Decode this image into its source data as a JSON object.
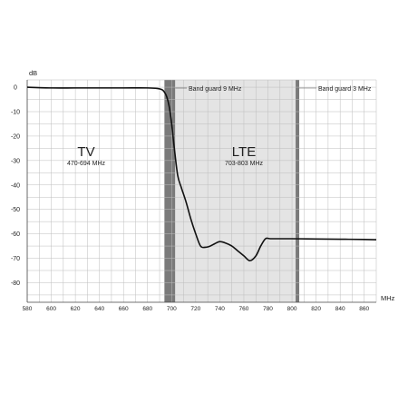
{
  "chart_data": {
    "type": "line",
    "title": "",
    "xlabel": "MHz",
    "ylabel": "dB",
    "xlim": [
      580,
      870
    ],
    "ylim": [
      -88,
      3
    ],
    "grid": true,
    "x_ticks": [
      580,
      600,
      620,
      640,
      660,
      680,
      700,
      720,
      740,
      760,
      780,
      800,
      820,
      840,
      860
    ],
    "y_ticks": [
      0,
      -10,
      -20,
      -30,
      -40,
      -50,
      -60,
      -70,
      -80
    ],
    "x_tick_labels": [
      "580",
      "600",
      "620",
      "640",
      "660",
      "680",
      "700",
      "720",
      "740",
      "760",
      "780",
      "800",
      "820",
      "840",
      "860"
    ],
    "y_tick_labels": [
      "0",
      "-10",
      "-20",
      "-30",
      "-40",
      "-50",
      "-60",
      "-70",
      "-80"
    ],
    "series": [
      {
        "x": [
          580,
          600,
          620,
          640,
          660,
          680,
          688,
          692,
          694,
          696,
          698,
          700,
          702,
          705,
          708,
          712,
          716,
          720,
          724,
          728,
          732,
          736,
          740,
          745,
          750,
          755,
          760,
          765,
          770,
          774,
          778,
          782,
          790,
          800,
          820,
          840,
          860,
          870
        ],
        "y": [
          0,
          -0.3,
          -0.3,
          -0.3,
          -0.3,
          -0.3,
          -0.5,
          -1.0,
          -2.0,
          -4.0,
          -8.0,
          -15.0,
          -24.0,
          -36.0,
          -41.0,
          -47.0,
          -54.0,
          -60.0,
          -65.0,
          -65.5,
          -65.0,
          -64.0,
          -63.2,
          -63.8,
          -65.0,
          -67.0,
          -69.0,
          -71.0,
          -69.0,
          -65.0,
          -62.0,
          -62.0,
          -62.0,
          -62.0,
          -62.1,
          -62.2,
          -62.3,
          -62.4
        ],
        "color": "#111111"
      }
    ],
    "shaded_regions": [
      {
        "from": 694,
        "to": 703,
        "color": "#7a7a7a"
      },
      {
        "from": 703,
        "to": 803,
        "color": "#e4e4e4"
      },
      {
        "from": 803,
        "to": 806,
        "color": "#7a7a7a"
      }
    ],
    "annotations": {
      "guard1": "Band guard 9 MHz",
      "guard2": "Band guard 3 MHz",
      "tv_name": "TV",
      "tv_range": "470-694 MHz",
      "lte_name": "LTE",
      "lte_range": "703-803 MHz"
    }
  }
}
